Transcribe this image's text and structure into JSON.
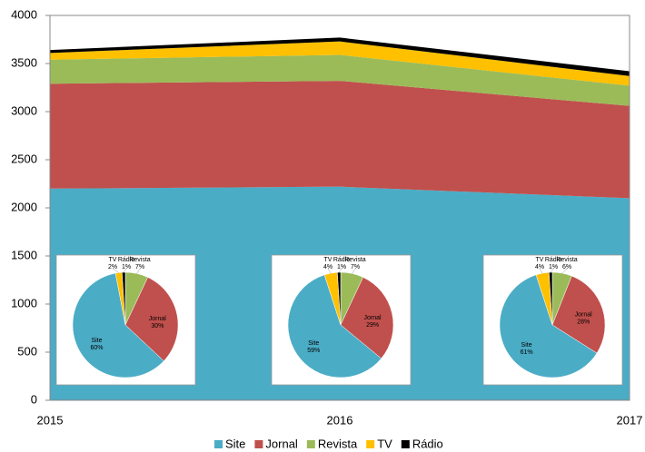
{
  "chart_data": [
    {
      "type": "stacked_area",
      "categories": [
        "2015",
        "2016",
        "2017"
      ],
      "series": [
        {
          "name": "Site",
          "color": "#4bacc6",
          "values": [
            2200,
            2220,
            2100
          ]
        },
        {
          "name": "Jornal",
          "color": "#c0504d",
          "values": [
            1090,
            1100,
            960
          ]
        },
        {
          "name": "Revista",
          "color": "#9bbb59",
          "values": [
            250,
            270,
            210
          ]
        },
        {
          "name": "TV",
          "color": "#ffc000",
          "values": [
            70,
            140,
            100
          ]
        },
        {
          "name": "Rádio",
          "color": "#000000",
          "values": [
            30,
            40,
            50
          ]
        }
      ],
      "ylim": [
        0,
        4000
      ],
      "yticks": [
        0,
        500,
        1000,
        1500,
        2000,
        2500,
        3000,
        3500,
        4000
      ],
      "legend": "bottom"
    },
    {
      "type": "pie",
      "categories": [
        "Revista",
        "Jornal",
        "Site",
        "TV",
        "Rádio"
      ],
      "colors": [
        "#9bbb59",
        "#c0504d",
        "#4bacc6",
        "#ffc000",
        "#000000"
      ],
      "values": [
        7,
        30,
        60,
        2,
        1
      ],
      "value_labels": [
        "7%",
        "30%",
        "60%",
        "2%",
        "1%"
      ]
    },
    {
      "type": "pie",
      "categories": [
        "Revista",
        "Jornal",
        "Site",
        "TV",
        "Rádio"
      ],
      "colors": [
        "#9bbb59",
        "#c0504d",
        "#4bacc6",
        "#ffc000",
        "#000000"
      ],
      "values": [
        7,
        29,
        59,
        4,
        1
      ],
      "value_labels": [
        "7%",
        "29%",
        "59%",
        "4%",
        "1%"
      ]
    },
    {
      "type": "pie",
      "categories": [
        "Revista",
        "Jornal",
        "Site",
        "TV",
        "Rádio"
      ],
      "colors": [
        "#9bbb59",
        "#c0504d",
        "#4bacc6",
        "#ffc000",
        "#000000"
      ],
      "values": [
        6,
        28,
        61,
        4,
        1
      ],
      "value_labels": [
        "6%",
        "28%",
        "61%",
        "4%",
        "1%"
      ]
    }
  ]
}
